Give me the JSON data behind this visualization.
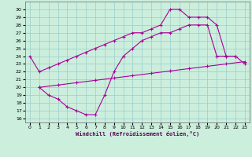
{
  "xlabel": "Windchill (Refroidissement éolien,°C)",
  "bg_color": "#cceedd",
  "grid_color": "#99cccc",
  "line_color": "#aa0099",
  "xlim": [
    -0.5,
    23.5
  ],
  "ylim": [
    15.5,
    31
  ],
  "xticks": [
    0,
    1,
    2,
    3,
    4,
    5,
    6,
    7,
    8,
    9,
    10,
    11,
    12,
    13,
    14,
    15,
    16,
    17,
    18,
    19,
    20,
    21,
    22,
    23
  ],
  "yticks": [
    16,
    17,
    18,
    19,
    20,
    21,
    22,
    23,
    24,
    25,
    26,
    27,
    28,
    29,
    30
  ],
  "line1_x": [
    0,
    1,
    2,
    3,
    4,
    5,
    6,
    7,
    8,
    9,
    10,
    11,
    12,
    13,
    14,
    15,
    16,
    17,
    18,
    19,
    20,
    21,
    22,
    23
  ],
  "line1_y": [
    24,
    22,
    22.5,
    23,
    23.5,
    24,
    24.5,
    25,
    25.5,
    26,
    26.5,
    27,
    27,
    27.5,
    28,
    30,
    30,
    29,
    29,
    29,
    28,
    24,
    24,
    23
  ],
  "line2_x": [
    1,
    3,
    5,
    7,
    9,
    11,
    13,
    15,
    17,
    19,
    21,
    23
  ],
  "line2_y": [
    20,
    20.3,
    20.6,
    20.9,
    21.2,
    21.5,
    21.8,
    22.1,
    22.4,
    22.7,
    23.0,
    23.3
  ],
  "line3_x": [
    1,
    2,
    3,
    4,
    5,
    6,
    7,
    8,
    9,
    10,
    11,
    12,
    13,
    14,
    15,
    16,
    17,
    18,
    19,
    20,
    21,
    22
  ],
  "line3_y": [
    20,
    19,
    18.5,
    17.5,
    17,
    16.5,
    16.5,
    19,
    22,
    24,
    25,
    26,
    26.5,
    27,
    27,
    27.5,
    28,
    28,
    28,
    24,
    24,
    24
  ]
}
